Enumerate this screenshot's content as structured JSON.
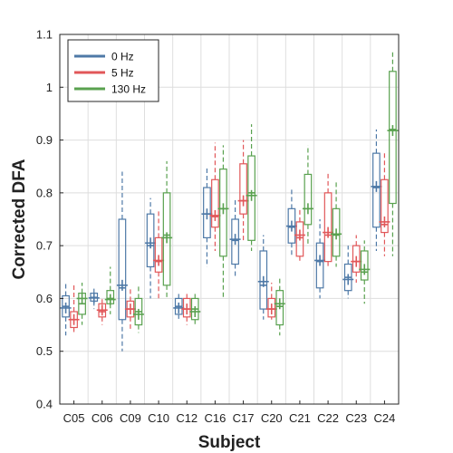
{
  "chart_data": {
    "type": "box",
    "xlabel": "Subject",
    "ylabel": "Corrected DFA",
    "ylim": [
      0.4,
      1.1
    ],
    "yticks": [
      0.4,
      0.5,
      0.6,
      0.7,
      0.8,
      0.9,
      1,
      1.1
    ],
    "ytick_labels": [
      "0.4",
      "0.5",
      "0.6",
      "0.7",
      "0.8",
      "0.9",
      "1",
      "1.1"
    ],
    "grid": true,
    "legend_position": "top-left",
    "categories": [
      "C05",
      "C06",
      "C09",
      "C10",
      "C12",
      "C16",
      "C17",
      "C20",
      "C21",
      "C22",
      "C23",
      "C24"
    ],
    "series": [
      {
        "name": "0 Hz",
        "color": "#4e79a7",
        "boxes": [
          {
            "min": 0.53,
            "q1": 0.565,
            "median": 0.585,
            "q3": 0.605,
            "max": 0.63,
            "mean": 0.582
          },
          {
            "min": 0.58,
            "q1": 0.595,
            "median": 0.602,
            "q3": 0.61,
            "max": 0.62,
            "mean": 0.601
          },
          {
            "min": 0.5,
            "q1": 0.56,
            "median": 0.62,
            "q3": 0.75,
            "max": 0.84,
            "mean": 0.625
          },
          {
            "min": 0.6,
            "q1": 0.66,
            "median": 0.7,
            "q3": 0.76,
            "max": 0.79,
            "mean": 0.705
          },
          {
            "min": 0.56,
            "q1": 0.57,
            "median": 0.585,
            "q3": 0.6,
            "max": 0.61,
            "mean": 0.582
          },
          {
            "min": 0.66,
            "q1": 0.715,
            "median": 0.76,
            "q3": 0.81,
            "max": 0.85,
            "mean": 0.76
          },
          {
            "min": 0.64,
            "q1": 0.665,
            "median": 0.71,
            "q3": 0.75,
            "max": 0.79,
            "mean": 0.712
          },
          {
            "min": 0.56,
            "q1": 0.58,
            "median": 0.625,
            "q3": 0.69,
            "max": 0.72,
            "mean": 0.632
          },
          {
            "min": 0.68,
            "q1": 0.705,
            "median": 0.735,
            "q3": 0.77,
            "max": 0.81,
            "mean": 0.737
          },
          {
            "min": 0.6,
            "q1": 0.62,
            "median": 0.67,
            "q3": 0.705,
            "max": 0.75,
            "mean": 0.672
          },
          {
            "min": 0.6,
            "q1": 0.615,
            "median": 0.64,
            "q3": 0.665,
            "max": 0.7,
            "mean": 0.636
          },
          {
            "min": 0.69,
            "q1": 0.735,
            "median": 0.81,
            "q3": 0.875,
            "max": 0.92,
            "mean": 0.812
          }
        ]
      },
      {
        "name": "5 Hz",
        "color": "#e15759",
        "boxes": [
          {
            "min": 0.535,
            "q1": 0.545,
            "median": 0.56,
            "q3": 0.575,
            "max": 0.63,
            "mean": 0.56
          },
          {
            "min": 0.55,
            "q1": 0.565,
            "median": 0.575,
            "q3": 0.59,
            "max": 0.6,
            "mean": 0.578
          },
          {
            "min": 0.54,
            "q1": 0.565,
            "median": 0.58,
            "q3": 0.595,
            "max": 0.62,
            "mean": 0.58
          },
          {
            "min": 0.6,
            "q1": 0.65,
            "median": 0.67,
            "q3": 0.715,
            "max": 0.77,
            "mean": 0.672
          },
          {
            "min": 0.55,
            "q1": 0.565,
            "median": 0.58,
            "q3": 0.6,
            "max": 0.61,
            "mean": 0.58
          },
          {
            "min": 0.69,
            "q1": 0.735,
            "median": 0.755,
            "q3": 0.825,
            "max": 0.895,
            "mean": 0.757
          },
          {
            "min": 0.71,
            "q1": 0.76,
            "median": 0.785,
            "q3": 0.855,
            "max": 0.9,
            "mean": 0.785
          },
          {
            "min": 0.56,
            "q1": 0.565,
            "median": 0.58,
            "q3": 0.6,
            "max": 0.63,
            "mean": 0.58
          },
          {
            "min": 0.67,
            "q1": 0.68,
            "median": 0.715,
            "q3": 0.745,
            "max": 0.77,
            "mean": 0.72
          },
          {
            "min": 0.66,
            "q1": 0.67,
            "median": 0.72,
            "q3": 0.8,
            "max": 0.84,
            "mean": 0.725
          },
          {
            "min": 0.63,
            "q1": 0.65,
            "median": 0.67,
            "q3": 0.7,
            "max": 0.72,
            "mean": 0.67
          },
          {
            "min": 0.68,
            "q1": 0.725,
            "median": 0.74,
            "q3": 0.825,
            "max": 0.88,
            "mean": 0.745
          }
        ]
      },
      {
        "name": "130 Hz",
        "color": "#59a14f",
        "boxes": [
          {
            "min": 0.55,
            "q1": 0.57,
            "median": 0.59,
            "q3": 0.61,
            "max": 0.63,
            "mean": 0.6
          },
          {
            "min": 0.57,
            "q1": 0.59,
            "median": 0.6,
            "q3": 0.615,
            "max": 0.66,
            "mean": 0.598
          },
          {
            "min": 0.535,
            "q1": 0.55,
            "median": 0.575,
            "q3": 0.6,
            "max": 0.625,
            "mean": 0.57
          },
          {
            "min": 0.6,
            "q1": 0.625,
            "median": 0.72,
            "q3": 0.8,
            "max": 0.86,
            "mean": 0.715
          },
          {
            "min": 0.55,
            "q1": 0.56,
            "median": 0.58,
            "q3": 0.6,
            "max": 0.61,
            "mean": 0.575
          },
          {
            "min": 0.6,
            "q1": 0.68,
            "median": 0.77,
            "q3": 0.845,
            "max": 0.89,
            "mean": 0.77
          },
          {
            "min": 0.69,
            "q1": 0.71,
            "median": 0.8,
            "q3": 0.87,
            "max": 0.93,
            "mean": 0.795
          },
          {
            "min": 0.53,
            "q1": 0.55,
            "median": 0.585,
            "q3": 0.615,
            "max": 0.64,
            "mean": 0.59
          },
          {
            "min": 0.7,
            "q1": 0.74,
            "median": 0.77,
            "q3": 0.835,
            "max": 0.89,
            "mean": 0.77
          },
          {
            "min": 0.66,
            "q1": 0.68,
            "median": 0.72,
            "q3": 0.77,
            "max": 0.82,
            "mean": 0.722
          },
          {
            "min": 0.59,
            "q1": 0.635,
            "median": 0.65,
            "q3": 0.69,
            "max": 0.71,
            "mean": 0.655
          },
          {
            "min": 0.68,
            "q1": 0.78,
            "median": 0.92,
            "q3": 1.03,
            "max": 1.07,
            "mean": 0.918
          }
        ]
      }
    ]
  }
}
